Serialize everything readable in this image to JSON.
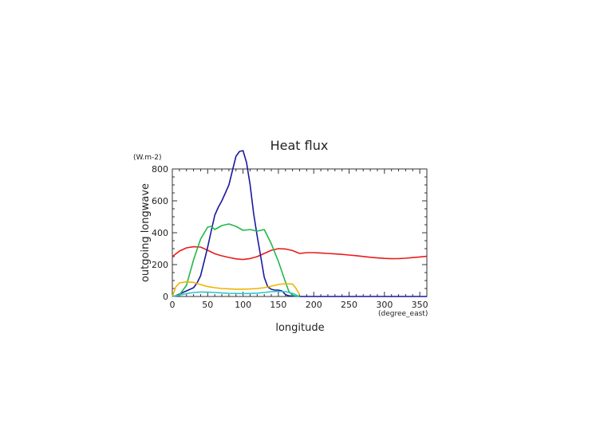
{
  "chart_data": {
    "type": "line",
    "title": "Heat flux",
    "xlabel": "longitude",
    "ylabel": "outgoing longwave",
    "x_unit": "(degree_east)",
    "y_unit": "(W.m-2)",
    "xlim": [
      0,
      360
    ],
    "ylim": [
      0,
      800
    ],
    "x_ticks": [
      "0",
      "50",
      "100",
      "150",
      "200",
      "250",
      "300",
      "350"
    ],
    "y_ticks": [
      "0",
      "200",
      "400",
      "600",
      "800"
    ],
    "grid": false,
    "series": [
      {
        "color": "#e81c1c",
        "x": [
          0,
          10,
          20,
          30,
          40,
          50,
          60,
          70,
          80,
          90,
          100,
          110,
          120,
          130,
          140,
          150,
          160,
          170,
          180,
          190,
          200,
          210,
          220,
          230,
          240,
          250,
          260,
          270,
          280,
          290,
          300,
          310,
          320,
          330,
          340,
          350,
          360
        ],
        "y": [
          250,
          285,
          305,
          312,
          310,
          290,
          268,
          255,
          245,
          236,
          232,
          238,
          250,
          270,
          290,
          300,
          298,
          288,
          270,
          275,
          275,
          273,
          270,
          267,
          264,
          260,
          256,
          251,
          246,
          242,
          239,
          237,
          238,
          240,
          244,
          248,
          252
        ]
      },
      {
        "color": "#1a1a9e",
        "x": [
          0,
          5,
          10,
          15,
          20,
          25,
          30,
          35,
          40,
          45,
          50,
          55,
          60,
          65,
          70,
          75,
          80,
          85,
          90,
          95,
          100,
          105,
          110,
          115,
          120,
          125,
          130,
          135,
          140,
          145,
          150,
          155,
          160,
          165,
          170,
          175,
          180,
          200,
          250,
          300,
          360
        ],
        "y": [
          0,
          5,
          15,
          25,
          35,
          45,
          55,
          85,
          130,
          220,
          310,
          410,
          510,
          560,
          600,
          650,
          700,
          790,
          880,
          910,
          915,
          840,
          700,
          520,
          380,
          250,
          120,
          60,
          45,
          40,
          40,
          35,
          12,
          4,
          2,
          1,
          0,
          0,
          0,
          0,
          0
        ]
      },
      {
        "color": "#22b84a",
        "x": [
          0,
          10,
          20,
          30,
          40,
          50,
          55,
          60,
          70,
          80,
          90,
          100,
          110,
          120,
          130,
          140,
          150,
          160,
          165,
          170,
          175,
          180
        ],
        "y": [
          0,
          10,
          70,
          230,
          360,
          435,
          440,
          420,
          445,
          455,
          440,
          415,
          420,
          410,
          420,
          330,
          220,
          90,
          30,
          8,
          2,
          0
        ]
      },
      {
        "color": "#f0b400",
        "x": [
          0,
          5,
          10,
          20,
          30,
          40,
          50,
          60,
          70,
          80,
          90,
          100,
          110,
          120,
          130,
          140,
          150,
          160,
          170,
          175,
          180
        ],
        "y": [
          0,
          60,
          85,
          92,
          88,
          75,
          62,
          55,
          50,
          48,
          46,
          46,
          47,
          50,
          55,
          65,
          75,
          80,
          78,
          50,
          10
        ]
      },
      {
        "color": "#2cc5cc",
        "x": [
          0,
          10,
          20,
          30,
          40,
          50,
          60,
          70,
          80,
          90,
          100,
          110,
          120,
          130,
          140,
          150,
          160,
          170,
          180
        ],
        "y": [
          0,
          8,
          18,
          25,
          28,
          27,
          25,
          22,
          20,
          19,
          18,
          19,
          21,
          25,
          30,
          32,
          30,
          20,
          0
        ]
      }
    ]
  }
}
